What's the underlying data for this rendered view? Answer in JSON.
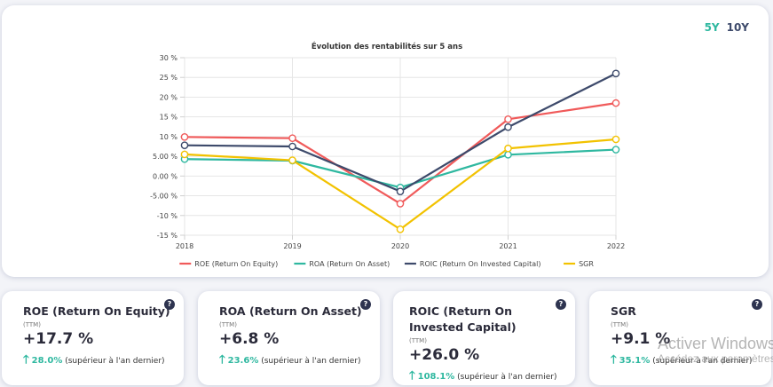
{
  "period_toggle": {
    "five_years": "5Y",
    "ten_years": "10Y"
  },
  "chart_data": {
    "type": "line",
    "title": "Évolution des rentabilités sur 5 ans",
    "x": [
      "2018",
      "2019",
      "2020",
      "2021",
      "2022"
    ],
    "y_ticks": [
      "30 %",
      "25 %",
      "20 %",
      "15 %",
      "10 %",
      "5.00 %",
      "0.00 %",
      "-5.00 %",
      "-10 %",
      "-15 %"
    ],
    "ylim": [
      -15,
      30
    ],
    "grid": true,
    "legend_position": "bottom",
    "series": [
      {
        "name": "ROE (Return On Equity)",
        "color": "#f05a5a",
        "values": [
          9.9,
          9.6,
          -7.0,
          14.4,
          18.5
        ]
      },
      {
        "name": "ROA (Return On Asset)",
        "color": "#2fb8a0",
        "values": [
          4.3,
          3.9,
          -2.9,
          5.4,
          6.7
        ]
      },
      {
        "name": "ROIC (Return On Invested Capital)",
        "color": "#3d4a6b",
        "values": [
          7.8,
          7.5,
          -3.9,
          12.4,
          26.0
        ]
      },
      {
        "name": "SGR",
        "color": "#f2c200",
        "values": [
          5.5,
          4.0,
          -13.5,
          7.0,
          9.3
        ]
      }
    ]
  },
  "kpis": [
    {
      "title": "ROE (Return On Equity)",
      "ttm": "(TTM)",
      "value": "+17.7 %",
      "change": "28.0%",
      "note": "(supérieur à l'an dernier)",
      "help": "?"
    },
    {
      "title": "ROA (Return On Asset)",
      "ttm": "(TTM)",
      "value": "+6.8 %",
      "change": "23.6%",
      "note": "(supérieur à l'an dernier)",
      "help": "?"
    },
    {
      "title": "ROIC (Return On Invested Capital)",
      "ttm": "(TTM)",
      "value": "+26.0 %",
      "change": "108.1%",
      "note": "(supérieur à l'an dernier)",
      "help": "?"
    },
    {
      "title": "SGR",
      "ttm": "(TTM)",
      "value": "+9.1 %",
      "change": "35.1%",
      "note": "(supérieur à l'an dernier)",
      "help": "?"
    }
  ],
  "kpi_arrow": "🡑",
  "watermark": {
    "line1": "Activer Windows",
    "line2": "Accédez aux paramètres"
  }
}
